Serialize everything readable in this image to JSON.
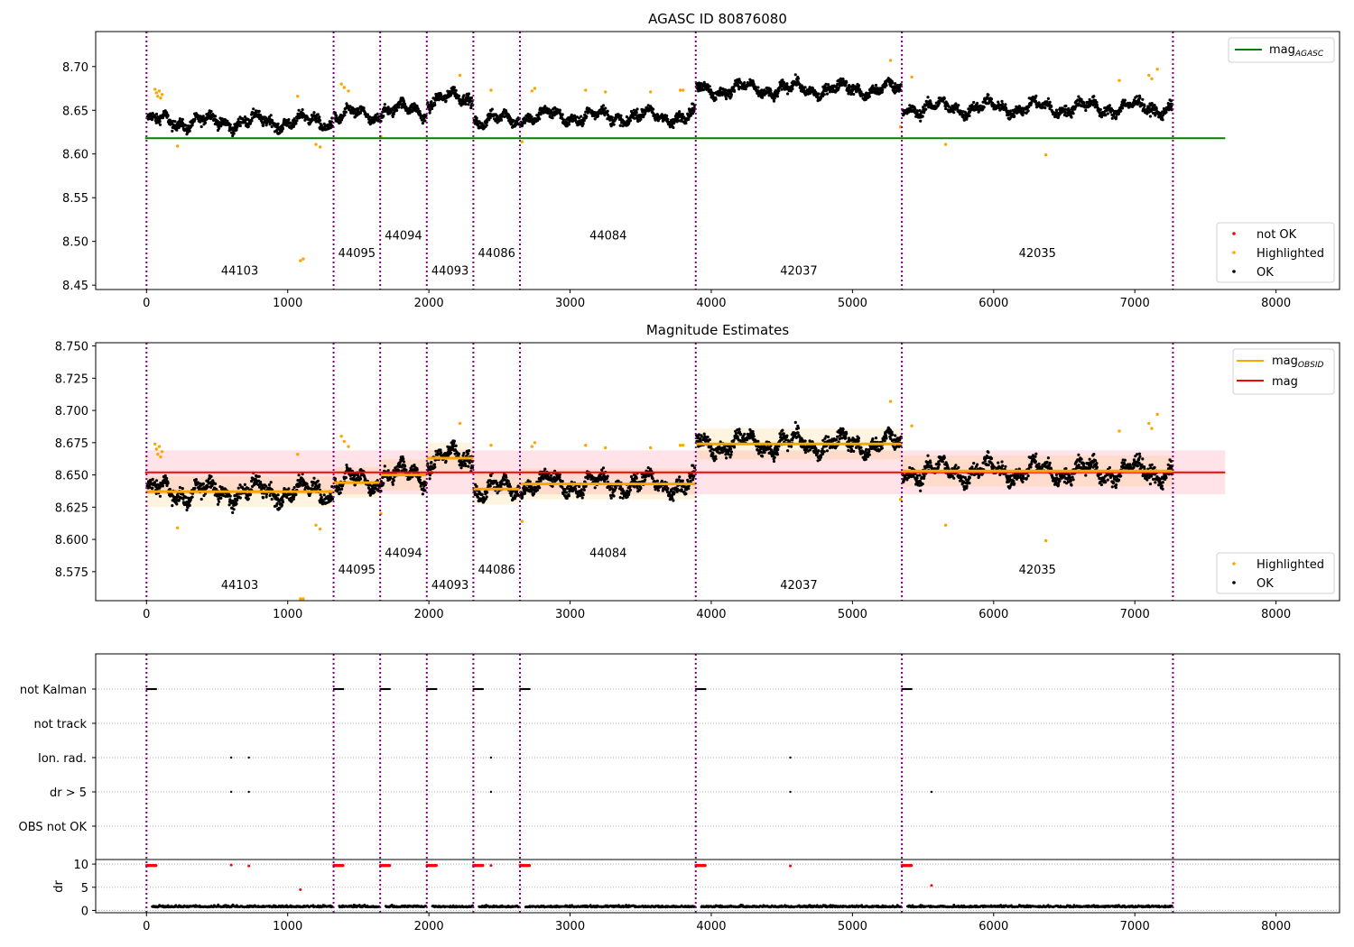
{
  "chart_data": [
    {
      "type": "scatter",
      "title": "AGASC ID 80876080",
      "xlim": [
        -360,
        8450
      ],
      "ylim": [
        8.445,
        8.74
      ],
      "x_ticks": [
        0,
        1000,
        2000,
        3000,
        4000,
        5000,
        6000,
        7000,
        8000
      ],
      "x_tick_labels": [
        "0",
        "1000",
        "2000",
        "3000",
        "4000",
        "5000",
        "6000",
        "7000",
        "8000"
      ],
      "y_ticks": [
        8.45,
        8.5,
        8.55,
        8.6,
        8.65,
        8.7
      ],
      "y_tick_labels": [
        "8.45",
        "8.50",
        "8.55",
        "8.60",
        "8.65",
        "8.70"
      ],
      "obsid_boundaries": [
        0,
        1325,
        1655,
        1985,
        2315,
        2645,
        3890,
        5350,
        7270
      ],
      "obsid_labels": [
        {
          "text": "44103",
          "x": 660,
          "y": 8.462
        },
        {
          "text": "44095",
          "x": 1490,
          "y": 8.482
        },
        {
          "text": "44094",
          "x": 1820,
          "y": 8.502
        },
        {
          "text": "44093",
          "x": 2150,
          "y": 8.462
        },
        {
          "text": "44086",
          "x": 2480,
          "y": 8.482
        },
        {
          "text": "44084",
          "x": 3270,
          "y": 8.502
        },
        {
          "text": "42037",
          "x": 4620,
          "y": 8.462
        },
        {
          "text": "42035",
          "x": 6310,
          "y": 8.482
        }
      ],
      "mag_agasc": 8.618,
      "line_extent": [
        -10,
        7640
      ],
      "segments": [
        {
          "x0": 0,
          "x1": 1325,
          "mean": 8.637
        },
        {
          "x0": 1325,
          "x1": 1655,
          "mean": 8.644
        },
        {
          "x0": 1655,
          "x1": 1985,
          "mean": 8.65
        },
        {
          "x0": 1985,
          "x1": 2315,
          "mean": 8.663
        },
        {
          "x0": 2315,
          "x1": 2645,
          "mean": 8.639
        },
        {
          "x0": 2645,
          "x1": 3890,
          "mean": 8.643
        },
        {
          "x0": 3890,
          "x1": 5350,
          "mean": 8.674
        },
        {
          "x0": 5350,
          "x1": 7270,
          "mean": 8.653
        }
      ],
      "highlighted_points": [
        [
          60,
          8.674
        ],
        [
          70,
          8.67
        ],
        [
          80,
          8.666
        ],
        [
          90,
          8.672
        ],
        [
          100,
          8.664
        ],
        [
          110,
          8.668
        ],
        [
          220,
          8.609
        ],
        [
          1070,
          8.666
        ],
        [
          1090,
          8.478
        ],
        [
          1110,
          8.48
        ],
        [
          1200,
          8.611
        ],
        [
          1230,
          8.608
        ],
        [
          1380,
          8.68
        ],
        [
          1400,
          8.676
        ],
        [
          1430,
          8.672
        ],
        [
          1660,
          8.62
        ],
        [
          2220,
          8.69
        ],
        [
          2440,
          8.673
        ],
        [
          2660,
          8.614
        ],
        [
          2730,
          8.672
        ],
        [
          2750,
          8.675
        ],
        [
          3110,
          8.673
        ],
        [
          3250,
          8.671
        ],
        [
          3570,
          8.671
        ],
        [
          3780,
          8.673
        ],
        [
          3800,
          8.673
        ],
        [
          5270,
          8.707
        ],
        [
          5340,
          8.631
        ],
        [
          5420,
          8.688
        ],
        [
          5660,
          8.611
        ],
        [
          6370,
          8.599
        ],
        [
          6890,
          8.684
        ],
        [
          7100,
          8.69
        ],
        [
          7120,
          8.686
        ],
        [
          7160,
          8.697
        ]
      ],
      "legend_line": {
        "label": "mag",
        "subscript": "AGASC"
      },
      "legend_points": [
        "not OK",
        "Highlighted",
        "OK"
      ],
      "colors": {
        "ok": "#000000",
        "highlighted": "#ffa500",
        "not_ok": "#ff0000",
        "agasc_line": "#008000",
        "boundary": "#800080"
      }
    },
    {
      "type": "scatter",
      "title": "Magnitude Estimates",
      "xlim": [
        -360,
        8450
      ],
      "ylim": [
        8.5525,
        8.7525
      ],
      "x_ticks": [
        0,
        1000,
        2000,
        3000,
        4000,
        5000,
        6000,
        7000,
        8000
      ],
      "x_tick_labels": [
        "0",
        "1000",
        "2000",
        "3000",
        "4000",
        "5000",
        "6000",
        "7000",
        "8000"
      ],
      "y_ticks": [
        8.575,
        8.6,
        8.625,
        8.65,
        8.675,
        8.7,
        8.725,
        8.75
      ],
      "y_tick_labels": [
        "8.575",
        "8.600",
        "8.625",
        "8.650",
        "8.675",
        "8.700",
        "8.725",
        "8.750"
      ],
      "obsid_labels": [
        {
          "text": "44103",
          "x": 660,
          "y": 8.5615
        },
        {
          "text": "44095",
          "x": 1490,
          "y": 8.5735
        },
        {
          "text": "44094",
          "x": 1820,
          "y": 8.5865
        },
        {
          "text": "44093",
          "x": 2150,
          "y": 8.5615
        },
        {
          "text": "44086",
          "x": 2480,
          "y": 8.5735
        },
        {
          "text": "44084",
          "x": 3270,
          "y": 8.5865
        },
        {
          "text": "42037",
          "x": 4620,
          "y": 8.5615
        },
        {
          "text": "42035",
          "x": 6310,
          "y": 8.5735
        }
      ],
      "mag": 8.652,
      "mag_band": [
        8.635,
        8.669
      ],
      "line_extent": [
        -10,
        7640
      ],
      "legend_lines": [
        {
          "label": "mag",
          "subscript": "OBSID"
        },
        {
          "label": "mag",
          "subscript": ""
        }
      ],
      "legend_points": [
        "Highlighted",
        "OK"
      ],
      "colors": {
        "mag": "#ff0000",
        "mag_obsid": "#ffa500",
        "band": "#ffc0cb"
      }
    },
    {
      "type": "scatter",
      "title": "",
      "xlim": [
        -360,
        8450
      ],
      "x_ticks": [
        0,
        1000,
        2000,
        3000,
        4000,
        5000,
        6000,
        7000,
        8000
      ],
      "x_tick_labels": [
        "0",
        "1000",
        "2000",
        "3000",
        "4000",
        "5000",
        "6000",
        "7000",
        "8000"
      ],
      "flag_rows": [
        "not Kalman",
        "not track",
        "Ion. rad.",
        "dr > 5",
        "OBS not OK"
      ],
      "flags": {
        "not_kalman_ranges": [
          [
            0,
            70
          ],
          [
            1325,
            1395
          ],
          [
            1655,
            1725
          ],
          [
            1985,
            2055
          ],
          [
            2315,
            2385
          ],
          [
            2645,
            2715
          ],
          [
            3890,
            3960
          ],
          [
            5350,
            5420
          ]
        ],
        "ion_rad": [
          600,
          725,
          2440,
          4560
        ],
        "dr_gt_5": [
          600,
          725,
          2440,
          4560,
          5560
        ]
      },
      "dr": {
        "ylabel": "dr",
        "ylim": [
          -0.5,
          10.6
        ],
        "y_ticks": [
          0,
          5,
          10
        ],
        "y_tick_labels": [
          "0",
          "5",
          "10"
        ],
        "high_ranges": [
          [
            0,
            70
          ],
          [
            1325,
            1395
          ],
          [
            1655,
            1725
          ],
          [
            1985,
            2055
          ],
          [
            2315,
            2385
          ],
          [
            2645,
            2715
          ],
          [
            3890,
            3960
          ],
          [
            5350,
            5420
          ]
        ],
        "outliers": [
          [
            600,
            9.8
          ],
          [
            725,
            9.6
          ],
          [
            1090,
            4.5
          ],
          [
            2440,
            9.7
          ],
          [
            4560,
            9.6
          ],
          [
            5560,
            5.4
          ]
        ]
      }
    }
  ]
}
